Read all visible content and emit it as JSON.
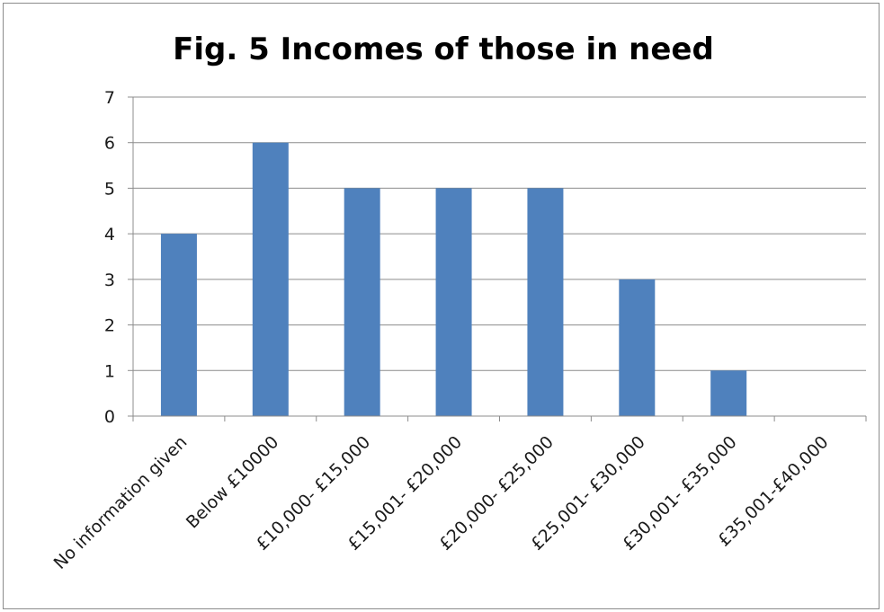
{
  "chart_data": {
    "type": "bar",
    "title": "Fig. 5 Incomes of those in need",
    "xlabel": "",
    "ylabel": "",
    "categories": [
      "No information given",
      "Below £10000",
      "£10,000- £15,000",
      "£15,001- £20,000",
      "£20,000- £25,000",
      "£25,001- £30,000",
      "£30,001- £35,000",
      "£35,001-£40,000"
    ],
    "values": [
      4,
      6,
      5,
      5,
      5,
      3,
      1,
      0
    ],
    "ylim": [
      0,
      7
    ],
    "yticks": [
      0,
      1,
      2,
      3,
      4,
      5,
      6,
      7
    ],
    "grid": true,
    "legend": "none",
    "bar_color": "#4F81BD",
    "grid_color": "#8C8C8C"
  }
}
